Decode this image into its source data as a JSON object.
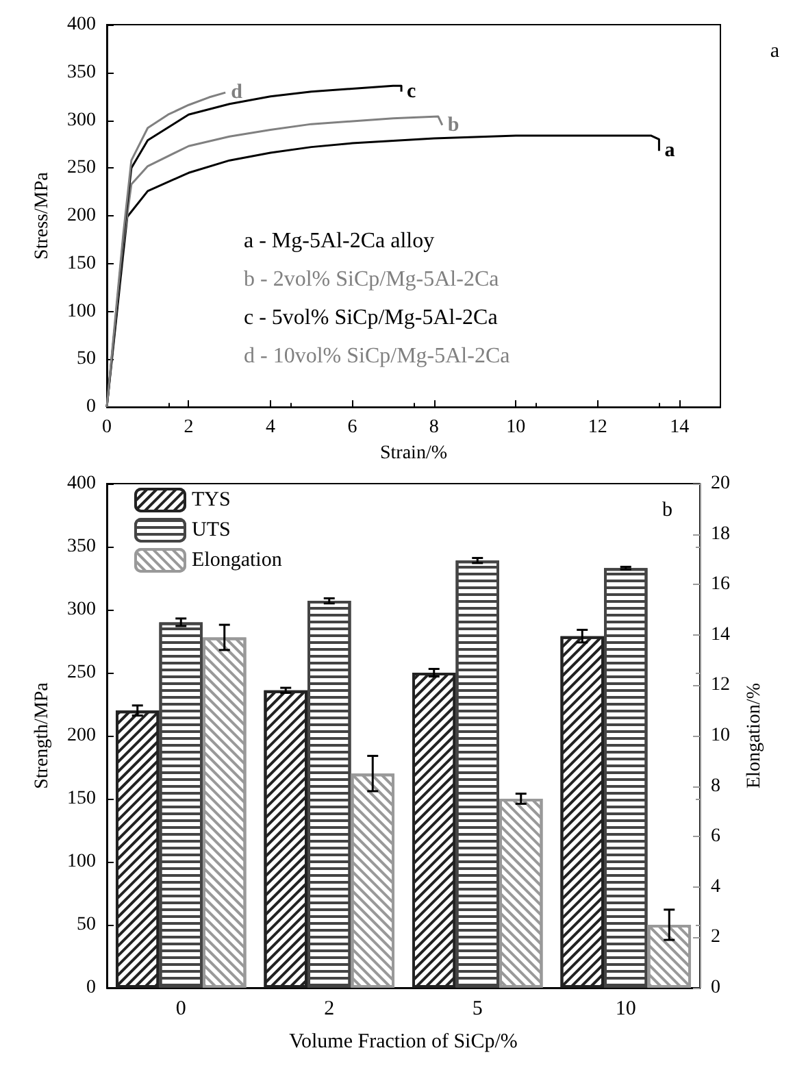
{
  "chart_data": [
    {
      "type": "line",
      "xlabel": "Strain/%",
      "ylabel": "Stress/MPa",
      "xlim": [
        0,
        15
      ],
      "xticks": [
        0,
        2,
        4,
        6,
        8,
        10,
        12,
        14
      ],
      "ylim": [
        0,
        400
      ],
      "yticks": [
        0,
        50,
        100,
        150,
        200,
        250,
        300,
        350,
        400
      ],
      "grid": false,
      "legend": false,
      "marker": "none",
      "line_style": "solid",
      "annotations": [
        "a",
        "a - Mg-5Al-2Ca alloy",
        "b - 2vol% SiCp/Mg-5Al-2Ca",
        "c - 5vol% SiCp/Mg-5Al-2Ca",
        "d - 10vol% SiCp/Mg-5Al-2Ca"
      ],
      "series": [
        {
          "name": "a",
          "color": "#000000",
          "x": [
            0,
            0.2,
            0.4,
            0.5,
            1,
            2,
            3,
            4,
            5,
            6,
            8,
            10,
            13.3,
            13.5,
            13.5
          ],
          "values": [
            0,
            80,
            160,
            199,
            226,
            245,
            258,
            266,
            272,
            276,
            281,
            284,
            284,
            280,
            268
          ]
        },
        {
          "name": "b",
          "color": "#808080",
          "x": [
            0,
            0.2,
            0.4,
            0.6,
            1,
            2,
            3,
            4,
            5,
            6,
            7,
            8.1,
            8.2
          ],
          "values": [
            0,
            85,
            170,
            233,
            252,
            273,
            283,
            290,
            296,
            299,
            302,
            304,
            295
          ]
        },
        {
          "name": "c",
          "color": "#000000",
          "x": [
            0,
            0.2,
            0.4,
            0.6,
            1,
            2,
            3,
            4,
            5,
            6,
            7,
            7.2,
            7.2
          ],
          "values": [
            0,
            85,
            175,
            250,
            279,
            306,
            317,
            325,
            330,
            333,
            336,
            336,
            330
          ]
        },
        {
          "name": "d",
          "color": "#808080",
          "x": [
            0,
            0.2,
            0.4,
            0.6,
            1,
            1.5,
            2,
            2.5,
            2.9
          ],
          "values": [
            0,
            90,
            180,
            258,
            292,
            306,
            316,
            324,
            329
          ]
        }
      ]
    },
    {
      "type": "bar",
      "xlabel": "Volume Fraction of SiCp/%",
      "ylabel": "Strength/MPa",
      "y2label": "Elongation/%",
      "categories": [
        "0",
        "2",
        "5",
        "10"
      ],
      "ylim": [
        0,
        400
      ],
      "yticks": [
        0,
        50,
        100,
        150,
        200,
        250,
        300,
        350,
        400
      ],
      "y2lim": [
        0,
        20
      ],
      "y2ticks": [
        0,
        2,
        4,
        6,
        8,
        10,
        12,
        14,
        16,
        18,
        20
      ],
      "grid": false,
      "legend": "top left",
      "annotations": [
        "b"
      ],
      "series": [
        {
          "name": "TYS",
          "color": "#222222",
          "values": [
            220,
            236,
            250,
            279
          ],
          "errors": [
            4,
            2,
            3,
            5
          ]
        },
        {
          "name": "UTS",
          "color": "#444444",
          "values": [
            290,
            307,
            339,
            333
          ],
          "errors": [
            3,
            2,
            2,
            1
          ]
        },
        {
          "name": "Elongation",
          "color": "#999999",
          "axis": "y2",
          "values": [
            13.9,
            8.5,
            7.5,
            2.5
          ],
          "errors": [
            0.5,
            0.7,
            0.2,
            0.6
          ]
        }
      ]
    }
  ]
}
